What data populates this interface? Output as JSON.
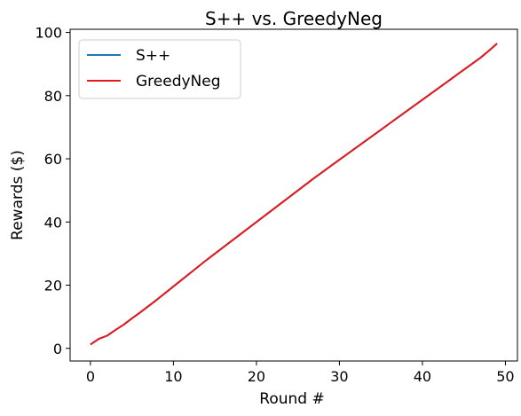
{
  "chart_data": {
    "type": "line",
    "title": "S++ vs. GreedyNeg",
    "xlabel": "Round #",
    "ylabel": "Rewards ($)",
    "xlim": [
      -2.45,
      51.45
    ],
    "ylim": [
      -4,
      101
    ],
    "xticks": [
      0,
      10,
      20,
      30,
      40,
      50
    ],
    "yticks": [
      0,
      20,
      40,
      60,
      80,
      100
    ],
    "legend_position": "upper-left",
    "grid": false,
    "x": [
      0,
      1,
      2,
      3,
      4,
      5,
      6,
      7,
      8,
      9,
      10,
      11,
      12,
      13,
      14,
      15,
      16,
      17,
      18,
      19,
      20,
      21,
      22,
      23,
      24,
      25,
      26,
      27,
      28,
      29,
      30,
      31,
      32,
      33,
      34,
      35,
      36,
      37,
      38,
      39,
      40,
      41,
      42,
      43,
      44,
      45,
      46,
      47,
      48,
      49
    ],
    "series": [
      {
        "name": "S++",
        "color": "#1f77b4",
        "values": [
          1.2,
          3.0,
          4.0,
          5.8,
          7.5,
          9.5,
          11.4,
          13.4,
          15.4,
          17.5,
          19.6,
          21.7,
          23.8,
          25.9,
          28.0,
          30.0,
          32.0,
          34.0,
          36.0,
          38.0,
          40.0,
          42.0,
          44.0,
          46.0,
          48.0,
          50.0,
          52.0,
          54.0,
          55.9,
          57.8,
          59.7,
          61.6,
          63.5,
          65.4,
          67.3,
          69.2,
          71.1,
          73.0,
          74.9,
          76.8,
          78.7,
          80.6,
          82.5,
          84.4,
          86.3,
          88.2,
          90.1,
          92.0,
          94.2,
          96.5
        ]
      },
      {
        "name": "GreedyNeg",
        "color": "#e31a1c",
        "values": [
          1.2,
          3.0,
          4.0,
          5.8,
          7.5,
          9.5,
          11.4,
          13.4,
          15.4,
          17.5,
          19.6,
          21.7,
          23.8,
          25.9,
          28.0,
          30.0,
          32.0,
          34.0,
          36.0,
          38.0,
          40.0,
          42.0,
          44.0,
          46.0,
          48.0,
          50.0,
          52.0,
          54.0,
          55.9,
          57.8,
          59.7,
          61.6,
          63.5,
          65.4,
          67.3,
          69.2,
          71.1,
          73.0,
          74.9,
          76.8,
          78.7,
          80.6,
          82.5,
          84.4,
          86.3,
          88.2,
          90.1,
          92.0,
          94.2,
          96.5
        ]
      }
    ]
  }
}
